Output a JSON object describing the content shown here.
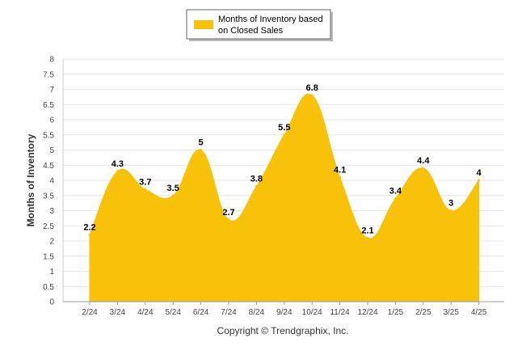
{
  "chart_data": {
    "type": "area",
    "title": "",
    "xlabel": "",
    "ylabel": "Months of Inventory",
    "categories": [
      "2/24",
      "3/24",
      "4/24",
      "5/24",
      "6/24",
      "7/24",
      "8/24",
      "9/24",
      "10/24",
      "11/24",
      "12/24",
      "1/25",
      "2/25",
      "3/25",
      "4/25"
    ],
    "series": [
      {
        "name": "Months of Inventory based on Closed Sales",
        "values": [
          2.2,
          4.3,
          3.7,
          3.5,
          5,
          2.7,
          3.8,
          5.5,
          6.8,
          4.1,
          2.1,
          3.4,
          4.4,
          3,
          4
        ],
        "color": "#F8C10A"
      }
    ],
    "ylim": [
      0,
      8
    ],
    "yticks": [
      "0",
      "0.5",
      "1",
      "1.5",
      "2",
      "2.5",
      "3",
      "3.5",
      "4",
      "4.5",
      "5",
      "5.5",
      "6",
      "6.5",
      "7",
      "7.5",
      "8"
    ],
    "grid": true,
    "legend": "top-center",
    "legend_lines": [
      "Months of Inventory based",
      "on Closed Sales"
    ],
    "curve": "smooth"
  },
  "footer": {
    "copyright": "Copyright © Trendgraphix, Inc."
  }
}
